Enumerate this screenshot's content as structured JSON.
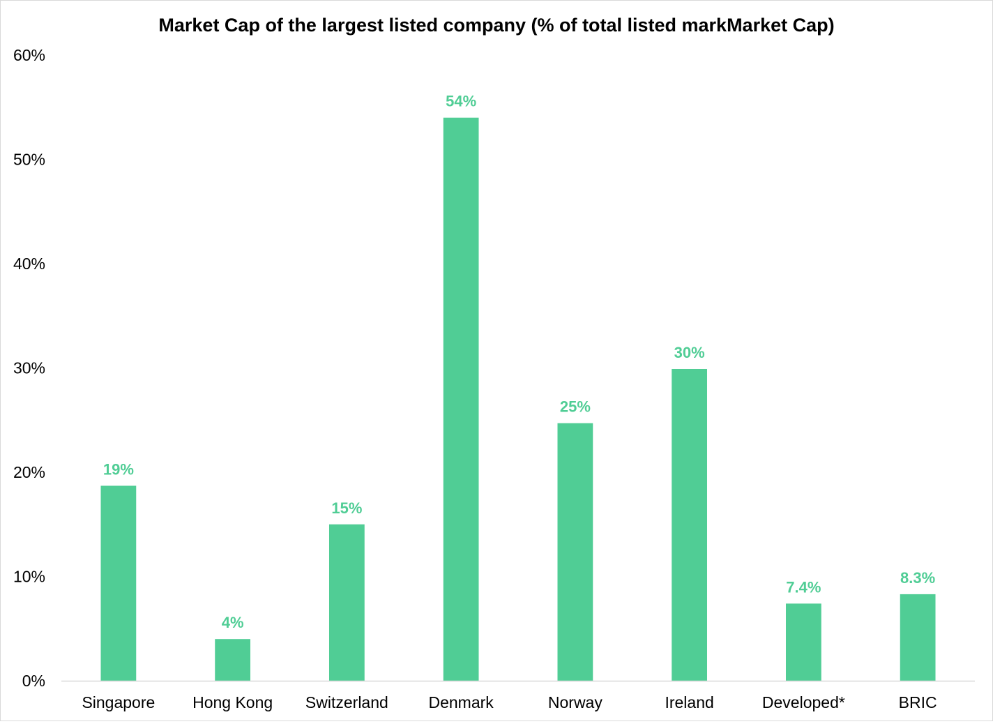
{
  "chart_data": {
    "type": "bar",
    "title": "Market Cap of the largest listed company (% of total listed markMarket Cap)",
    "xlabel": "",
    "ylabel": "",
    "categories": [
      "Singapore",
      "Hong Kong",
      "Switzerland",
      "Denmark",
      "Norway",
      "Ireland",
      "Developed*",
      "BRIC"
    ],
    "values": [
      18.7,
      4.0,
      15.0,
      54.0,
      24.7,
      29.9,
      7.4,
      8.3
    ],
    "data_labels": [
      "19%",
      "4%",
      "15%",
      "54%",
      "25%",
      "30%",
      "7.4%",
      "8.3%"
    ],
    "ylim": [
      0,
      60
    ],
    "yticks": [
      0,
      10,
      20,
      30,
      40,
      50,
      60
    ],
    "ytick_labels": [
      "0%",
      "10%",
      "20%",
      "30%",
      "40%",
      "50%",
      "60%"
    ],
    "grid": false,
    "legend": "none",
    "bar_color": "#50cd95",
    "label_color": "#50cd95",
    "axis_color": "#d9d9d9"
  }
}
